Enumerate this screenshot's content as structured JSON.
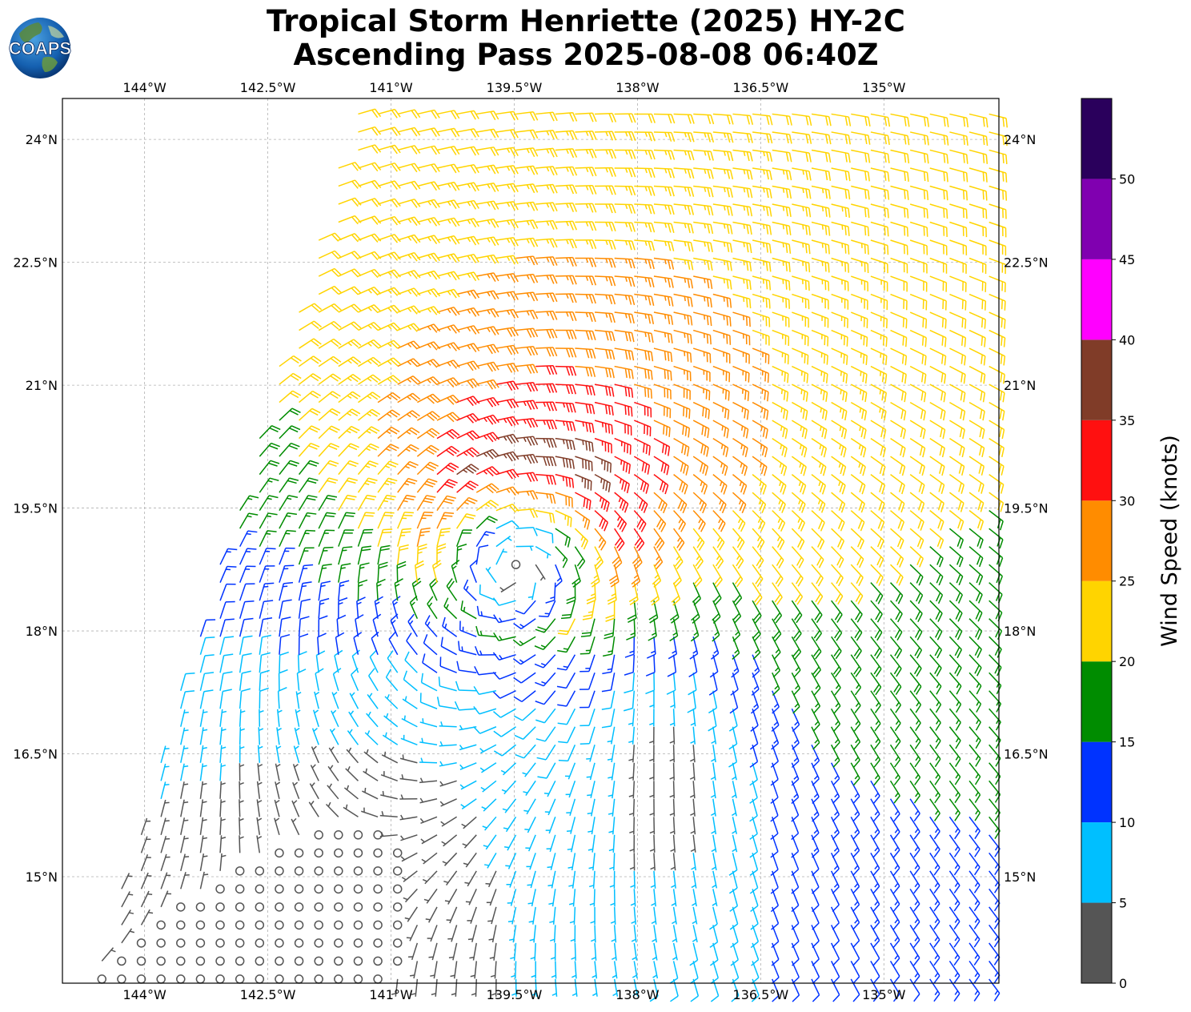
{
  "title": {
    "line1": "Tropical Storm Henriette (2025) HY-2C",
    "line2": "Ascending Pass 2025-08-08 06:40Z"
  },
  "logo": {
    "text": "COAPS",
    "icon": "globe-icon"
  },
  "map": {
    "lon_range": [
      -145,
      -133.6
    ],
    "lat_range": [
      13.7,
      24.5
    ],
    "lon_ticks": [
      {
        "value": -144,
        "label": "144°W"
      },
      {
        "value": -142.5,
        "label": "142.5°W"
      },
      {
        "value": -141,
        "label": "141°W"
      },
      {
        "value": -139.5,
        "label": "139.5°W"
      },
      {
        "value": -138,
        "label": "138°W"
      },
      {
        "value": -136.5,
        "label": "136.5°W"
      },
      {
        "value": -135,
        "label": "135°W"
      }
    ],
    "lat_ticks": [
      {
        "value": 24,
        "label": "24°N"
      },
      {
        "value": 22.5,
        "label": "22.5°N"
      },
      {
        "value": 21,
        "label": "21°N"
      },
      {
        "value": 19.5,
        "label": "19.5°N"
      },
      {
        "value": 18,
        "label": "18°N"
      },
      {
        "value": 16.5,
        "label": "16.5°N"
      },
      {
        "value": 15,
        "label": "15°N"
      }
    ],
    "grid": true,
    "storm_center": {
      "lon": -139.4,
      "lat": 19.1
    },
    "swath_west_edge": [
      {
        "lon": -141.4,
        "lat": 24.5
      },
      {
        "lon": -144.6,
        "lat": 13.8
      }
    ]
  },
  "colorbar": {
    "title": "Wind Speed (knots)",
    "tick_labels": [
      "0",
      "5",
      "10",
      "15",
      "20",
      "25",
      "30",
      "35",
      "40",
      "45",
      "50"
    ],
    "bins": [
      {
        "min": 0,
        "max": 5,
        "color": "#555555"
      },
      {
        "min": 5,
        "max": 10,
        "color": "#00bfff"
      },
      {
        "min": 10,
        "max": 15,
        "color": "#0033ff"
      },
      {
        "min": 15,
        "max": 20,
        "color": "#008c00"
      },
      {
        "min": 20,
        "max": 25,
        "color": "#ffd400"
      },
      {
        "min": 25,
        "max": 30,
        "color": "#ff8c00"
      },
      {
        "min": 30,
        "max": 35,
        "color": "#ff1010"
      },
      {
        "min": 35,
        "max": 40,
        "color": "#803c28"
      },
      {
        "min": 40,
        "max": 45,
        "color": "#ff00ff"
      },
      {
        "min": 45,
        "max": 50,
        "color": "#8000b0"
      },
      {
        "min": 50,
        "max": 55,
        "color": "#2a005c"
      }
    ]
  }
}
